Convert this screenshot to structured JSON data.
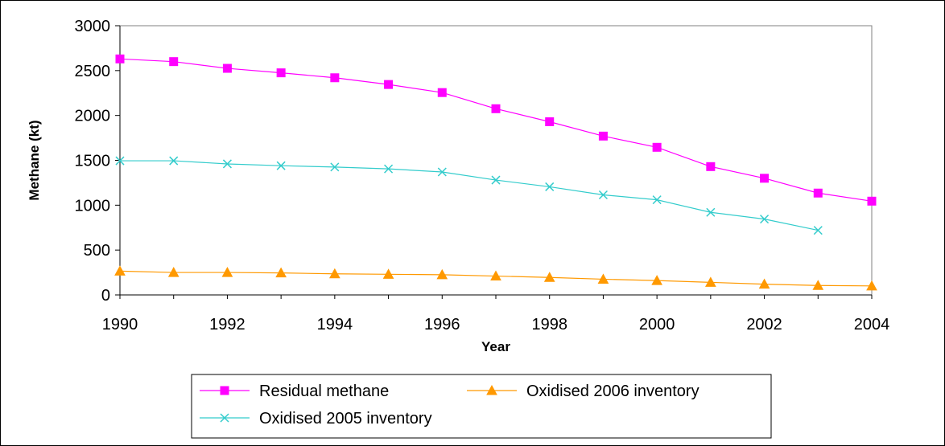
{
  "chart_data": {
    "type": "line",
    "title": "",
    "xlabel": "Year",
    "ylabel": "Methane (kt)",
    "xlim": [
      1990,
      2004
    ],
    "ylim": [
      0,
      3000
    ],
    "x_ticks": [
      1990,
      1992,
      1994,
      1996,
      1998,
      2000,
      2002,
      2004
    ],
    "y_ticks": [
      0,
      500,
      1000,
      1500,
      2000,
      2500,
      3000
    ],
    "grid": false,
    "legend_position": "bottom",
    "series": [
      {
        "name": "Residual methane",
        "color": "#ff00ff",
        "marker": "square",
        "x": [
          1990,
          1991,
          1992,
          1993,
          1994,
          1995,
          1996,
          1997,
          1998,
          1999,
          2000,
          2001,
          2002,
          2003,
          2004
        ],
        "y": [
          2630,
          2600,
          2525,
          2475,
          2420,
          2345,
          2255,
          2075,
          1930,
          1770,
          1645,
          1430,
          1300,
          1135,
          1045
        ]
      },
      {
        "name": "Oxidised 2006 inventory",
        "color": "#ff9900",
        "marker": "triangle",
        "x": [
          1990,
          1991,
          1992,
          1993,
          1994,
          1995,
          1996,
          1997,
          1998,
          1999,
          2000,
          2001,
          2002,
          2003,
          2004
        ],
        "y": [
          265,
          250,
          250,
          245,
          235,
          230,
          225,
          210,
          195,
          175,
          160,
          140,
          120,
          105,
          100
        ]
      },
      {
        "name": "Oxidised 2005 inventory",
        "color": "#33cccc",
        "marker": "x",
        "x": [
          1990,
          1991,
          1992,
          1993,
          1994,
          1995,
          1996,
          1997,
          1998,
          1999,
          2000,
          2001,
          2002,
          2003
        ],
        "y": [
          1495,
          1495,
          1460,
          1440,
          1425,
          1405,
          1370,
          1280,
          1205,
          1115,
          1060,
          920,
          845,
          720
        ]
      }
    ]
  }
}
